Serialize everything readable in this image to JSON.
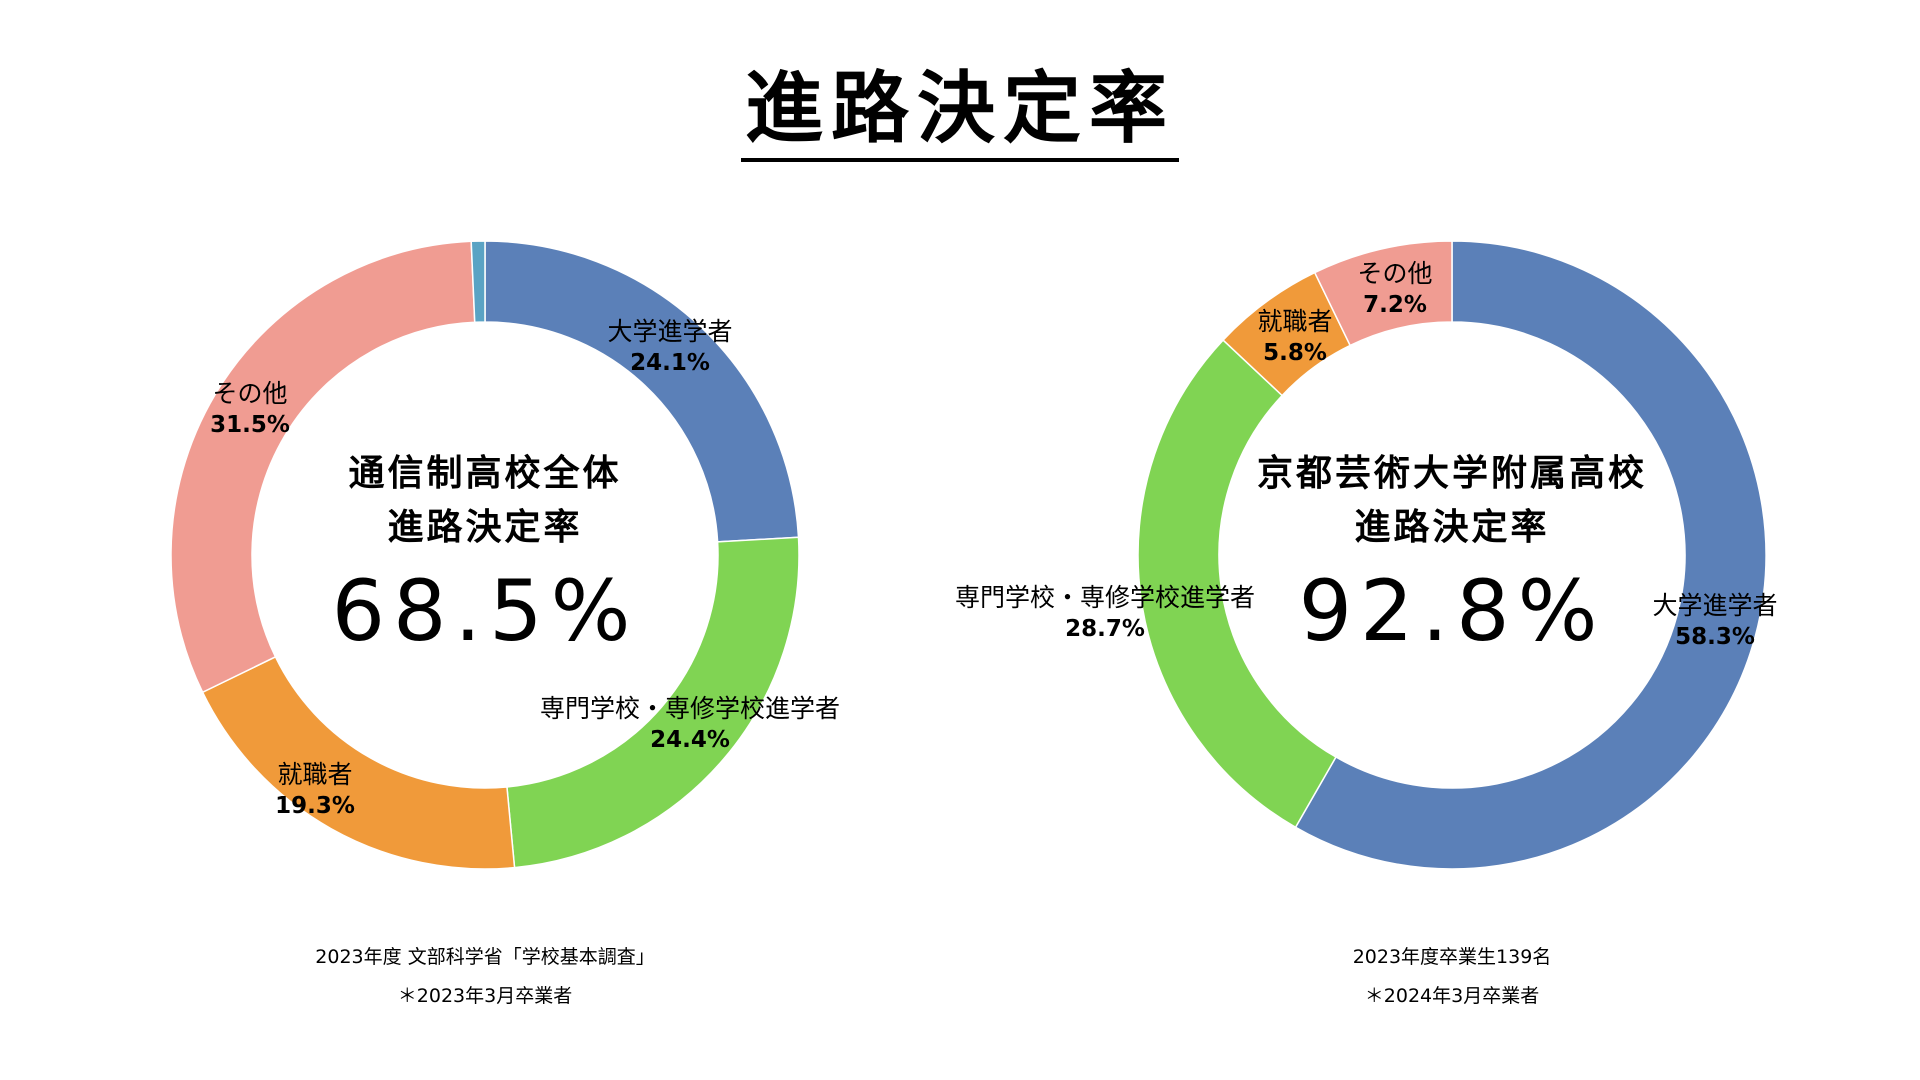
{
  "page": {
    "title": "進路決定率"
  },
  "chart_data": [
    {
      "type": "pie",
      "style": "donut",
      "center_label": {
        "line1": "通信制高校全体",
        "line2": "進路決定率",
        "value": "68.5%"
      },
      "slices": [
        {
          "label": "大学進学者",
          "value": 24.1,
          "value_text": "24.1%",
          "color": "#5b80b8"
        },
        {
          "label": "専門学校・専修学校進学者",
          "value": 24.4,
          "value_text": "24.4%",
          "color": "#80d453"
        },
        {
          "label": "就職者",
          "value": 19.3,
          "value_text": "19.3%",
          "color": "#f09a3a"
        },
        {
          "label": "その他",
          "value": 31.5,
          "value_text": "31.5%",
          "color": "#f09c92"
        },
        {
          "label": "",
          "value": 0.7,
          "value_text": "",
          "color": "#5aa3c4"
        }
      ],
      "source_line1": "2023年度 文部科学省「学校基本調査」",
      "source_line2": "＊2023年3月卒業者"
    },
    {
      "type": "pie",
      "style": "donut",
      "center_label": {
        "line1": "京都芸術大学附属高校",
        "line2": "進路決定率",
        "value": "92.8%"
      },
      "slices": [
        {
          "label": "大学進学者",
          "value": 58.3,
          "value_text": "58.3%",
          "color": "#5b80b8"
        },
        {
          "label": "専門学校・専修学校進学者",
          "value": 28.7,
          "value_text": "28.7%",
          "color": "#80d453"
        },
        {
          "label": "就職者",
          "value": 5.8,
          "value_text": "5.8%",
          "color": "#f09a3a"
        },
        {
          "label": "その他",
          "value": 7.2,
          "value_text": "7.2%",
          "color": "#f09c92"
        }
      ],
      "source_line1": "2023年度卒業生139名",
      "source_line2": "＊2024年3月卒業者"
    }
  ]
}
